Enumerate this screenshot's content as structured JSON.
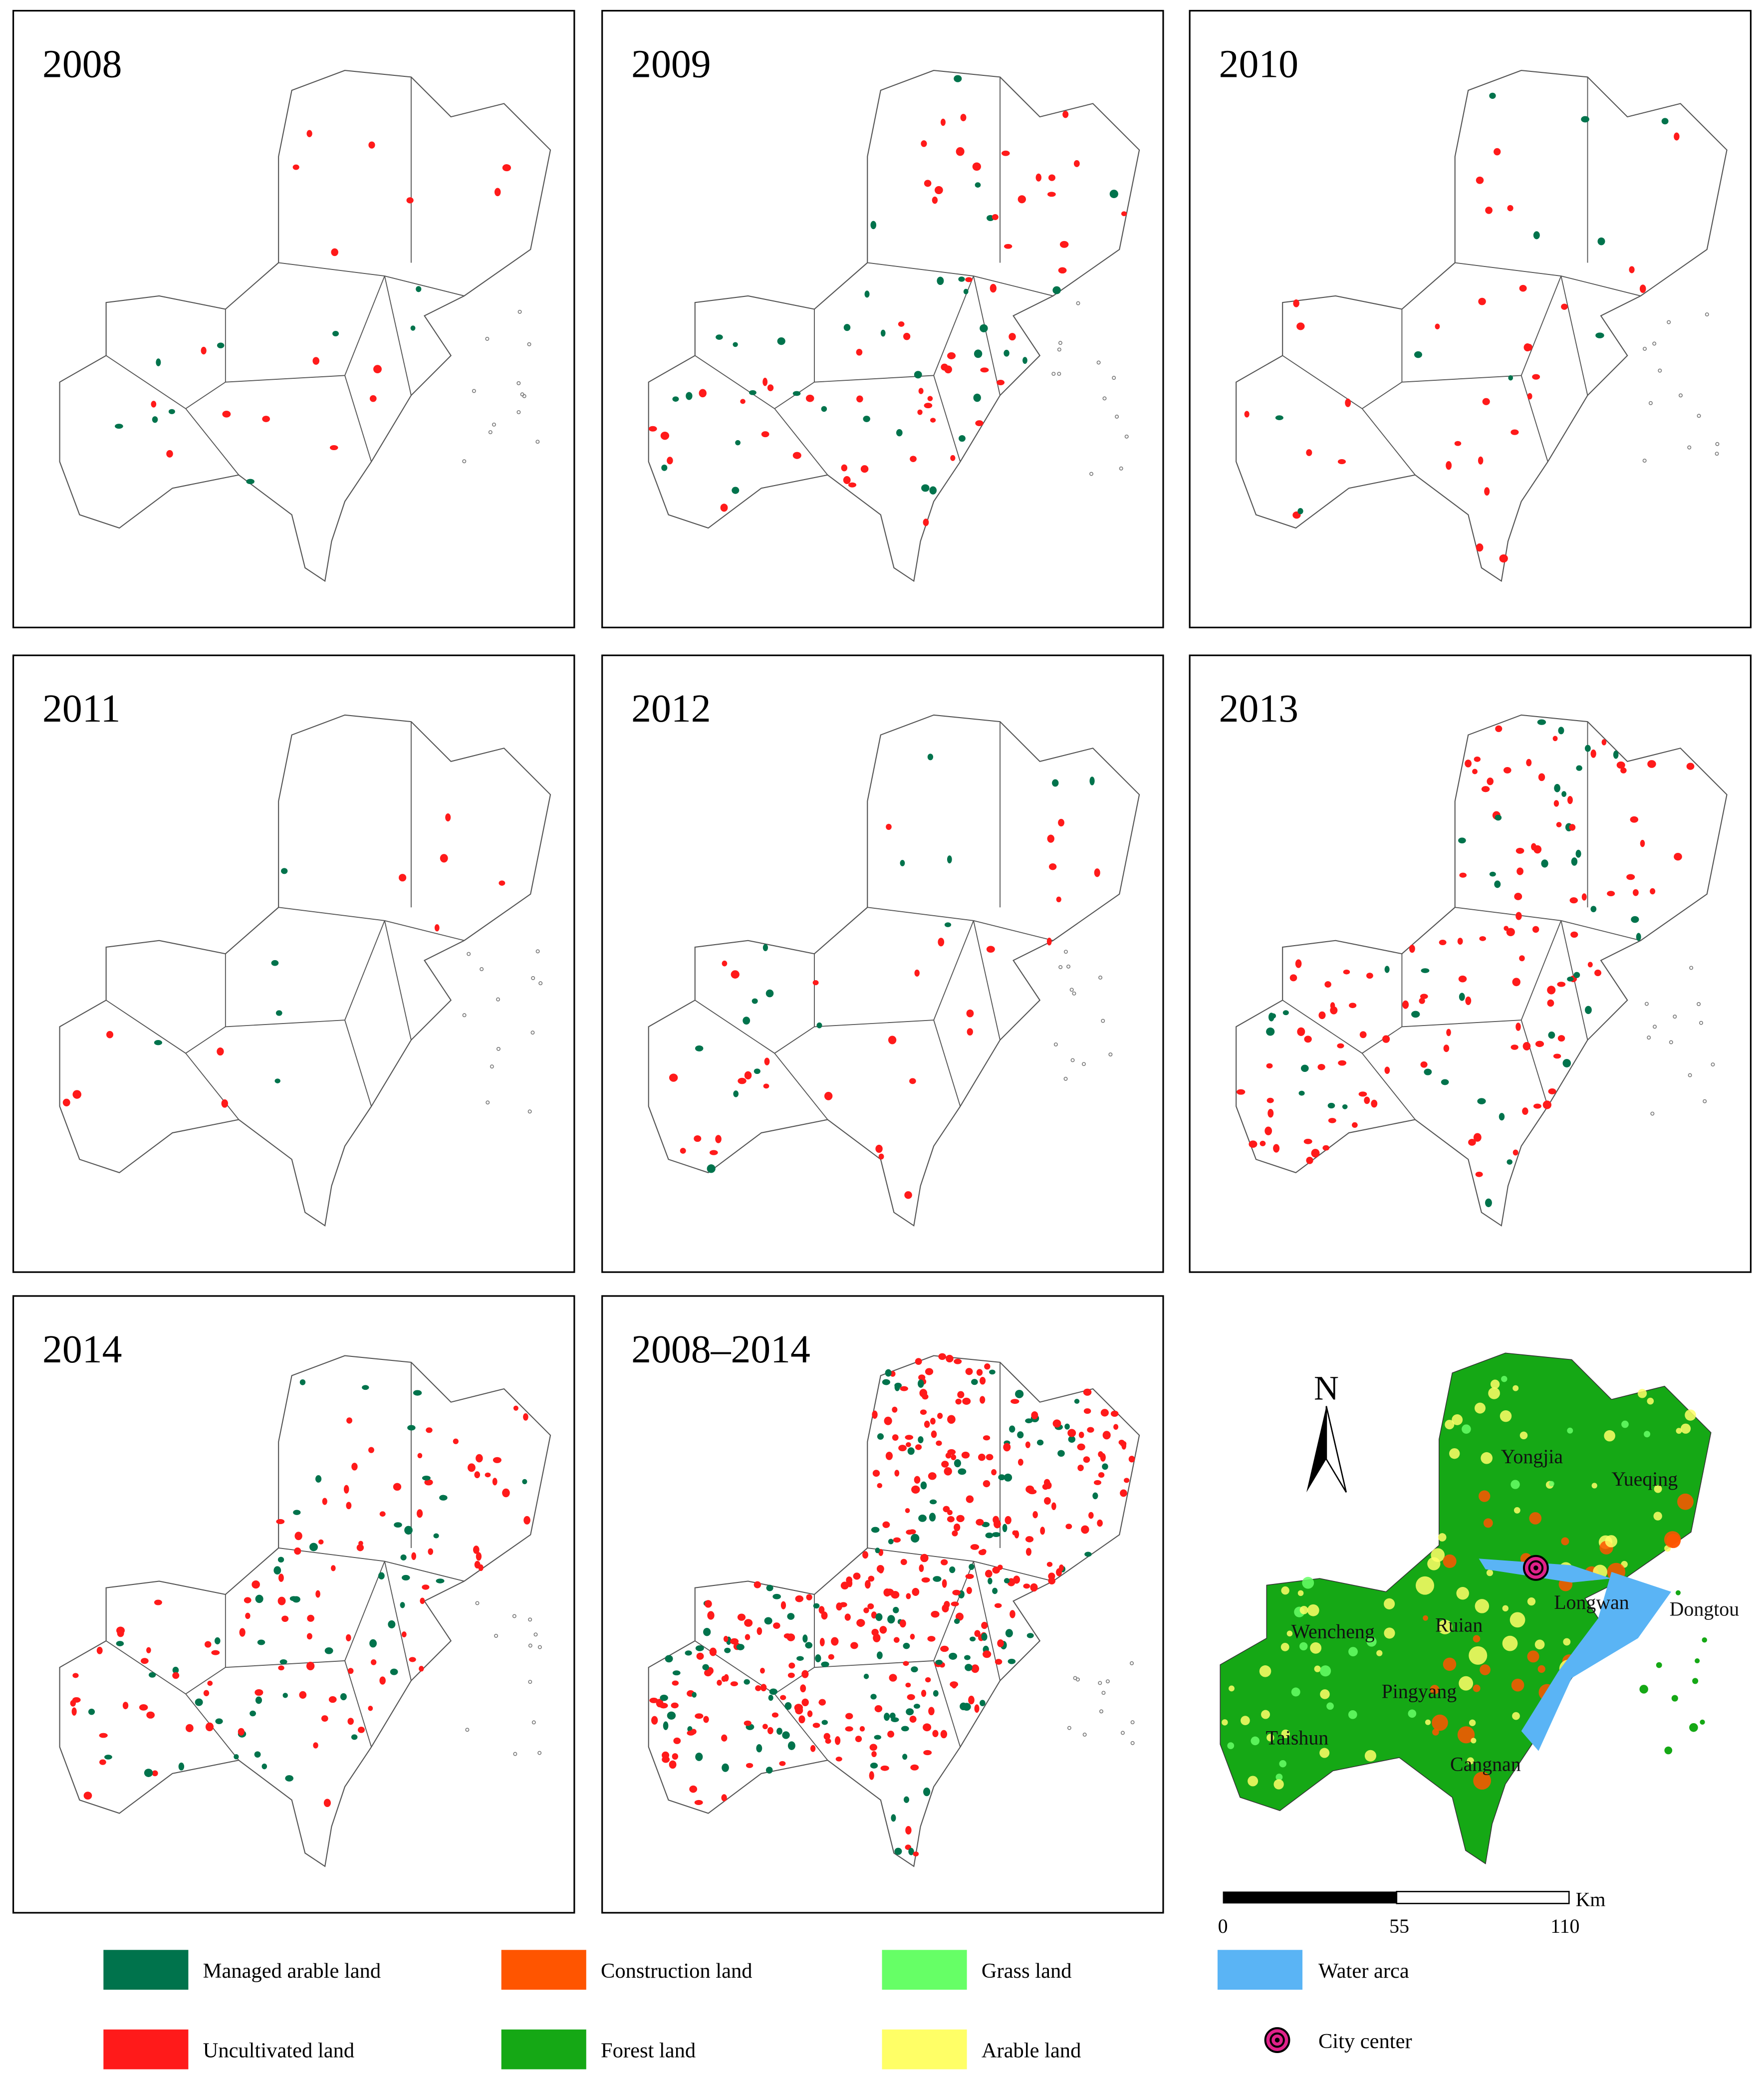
{
  "panels": [
    {
      "title": "2008"
    },
    {
      "title": "2009"
    },
    {
      "title": "2010"
    },
    {
      "title": "2011"
    },
    {
      "title": "2012"
    },
    {
      "title": "2013"
    },
    {
      "title": "2014"
    },
    {
      "title": "2008–2014"
    }
  ],
  "map": {
    "north": "N",
    "places": [
      {
        "label": "Yongjia"
      },
      {
        "label": "Yueqing"
      },
      {
        "label": "Longwan"
      },
      {
        "label": "Dongtou"
      },
      {
        "label": "Wencheng"
      },
      {
        "label": "Ruian"
      },
      {
        "label": "Pingyang"
      },
      {
        "label": "Taishun"
      },
      {
        "label": "Cangnan"
      }
    ],
    "scale_bar": {
      "labels": [
        "0",
        "55",
        "110"
      ],
      "unit": "Km"
    }
  },
  "legend": [
    {
      "label": "Managed arable land",
      "color": "#00734c"
    },
    {
      "label": "Construction land",
      "color": "#ff5500"
    },
    {
      "label": "Grass land",
      "color": "#66ff66"
    },
    {
      "label": "Water arca",
      "color": "#5ab4f5"
    },
    {
      "label": "Uncultivated land",
      "color": "#ff1a1a"
    },
    {
      "label": "Forest land",
      "color": "#15a815"
    },
    {
      "label": "Arable land",
      "color": "#ffff66"
    },
    {
      "label": "City center",
      "color": "#e0218a"
    }
  ]
}
